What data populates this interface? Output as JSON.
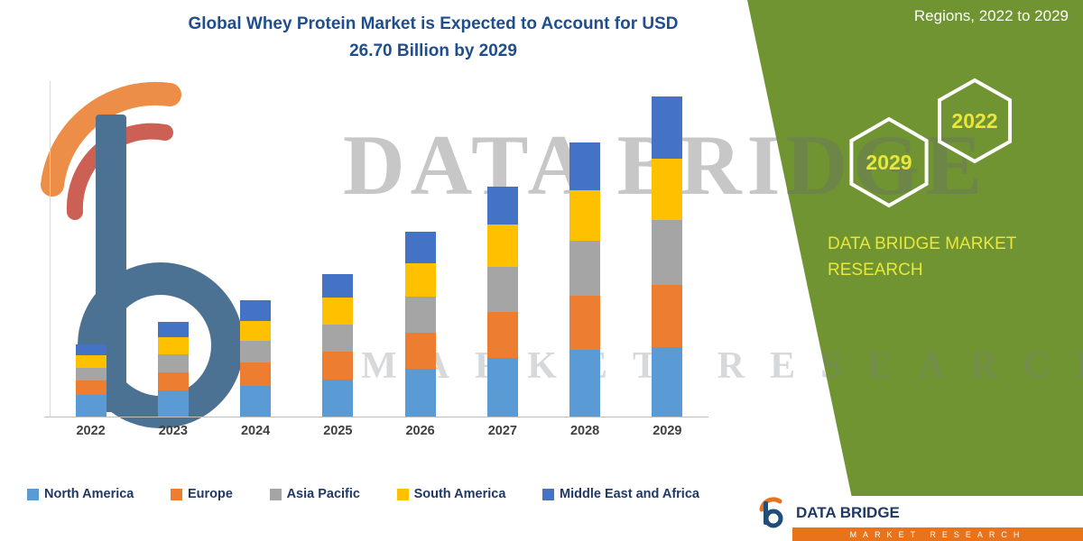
{
  "title": {
    "line1": "Global Whey Protein Market is Expected to Account for USD",
    "line2": "26.70 Billion by 2029"
  },
  "green_panel": {
    "top_text": "Regions, 2022 to 2029",
    "hexagons": [
      {
        "label": "2029"
      },
      {
        "label": "2022"
      }
    ],
    "brand_line1": "DATA BRIDGE MARKET",
    "brand_line2": "RESEARCH"
  },
  "watermark": {
    "line1": "DATA BRIDGE",
    "line2": "MARKET RESEARCH"
  },
  "footer": {
    "brand": "DATA BRIDGE",
    "sub": "MARKET RESEARCH"
  },
  "chart_data": {
    "type": "bar",
    "stacked": true,
    "title": "Global Whey Protein Market is Expected to Account for USD 26.70 Billion by 2029",
    "unit": "USD Billion",
    "categories": [
      "2022",
      "2023",
      "2024",
      "2025",
      "2026",
      "2027",
      "2028",
      "2029"
    ],
    "series": [
      {
        "name": "North America",
        "color": "#5B9BD5",
        "values": [
          1.8,
          2.2,
          2.6,
          3.1,
          4.0,
          4.9,
          5.6,
          5.8
        ]
      },
      {
        "name": "Europe",
        "color": "#ED7D31",
        "values": [
          1.2,
          1.5,
          1.9,
          2.3,
          3.0,
          3.8,
          4.5,
          5.2
        ]
      },
      {
        "name": "Asia Pacific",
        "color": "#A5A5A5",
        "values": [
          1.1,
          1.5,
          1.8,
          2.3,
          3.0,
          3.8,
          4.6,
          5.4
        ]
      },
      {
        "name": "South America",
        "color": "#FFC000",
        "values": [
          1.0,
          1.4,
          1.7,
          2.2,
          2.8,
          3.5,
          4.2,
          5.1
        ]
      },
      {
        "name": "Middle East and Africa",
        "color": "#4472C4",
        "values": [
          0.9,
          1.3,
          1.7,
          2.0,
          2.6,
          3.2,
          4.0,
          5.2
        ]
      }
    ],
    "totals_by_year": [
      6.0,
      7.9,
      9.7,
      11.9,
      15.4,
      19.2,
      22.9,
      26.7
    ],
    "ylim": [
      0,
      28
    ],
    "grid": false,
    "legend_position": "bottom"
  },
  "colors": {
    "accent_green": "#6F9431",
    "title_blue": "#1F4E8C",
    "hex_label_yellow": "#EAE63C",
    "footer_orange": "#E8731A",
    "legend_text": "#203864"
  }
}
